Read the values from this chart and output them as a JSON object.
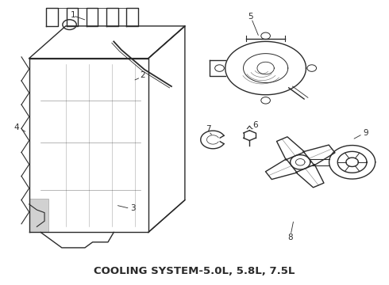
{
  "title": "COOLING SYSTEM-5.0L, 5.8L, 7.5L",
  "title_fontsize": 9.5,
  "title_fontweight": "bold",
  "bg_color": "#ffffff",
  "line_color": "#2a2a2a",
  "label_color": "#2a2a2a",
  "figsize": [
    4.9,
    3.6
  ],
  "dpi": 100
}
